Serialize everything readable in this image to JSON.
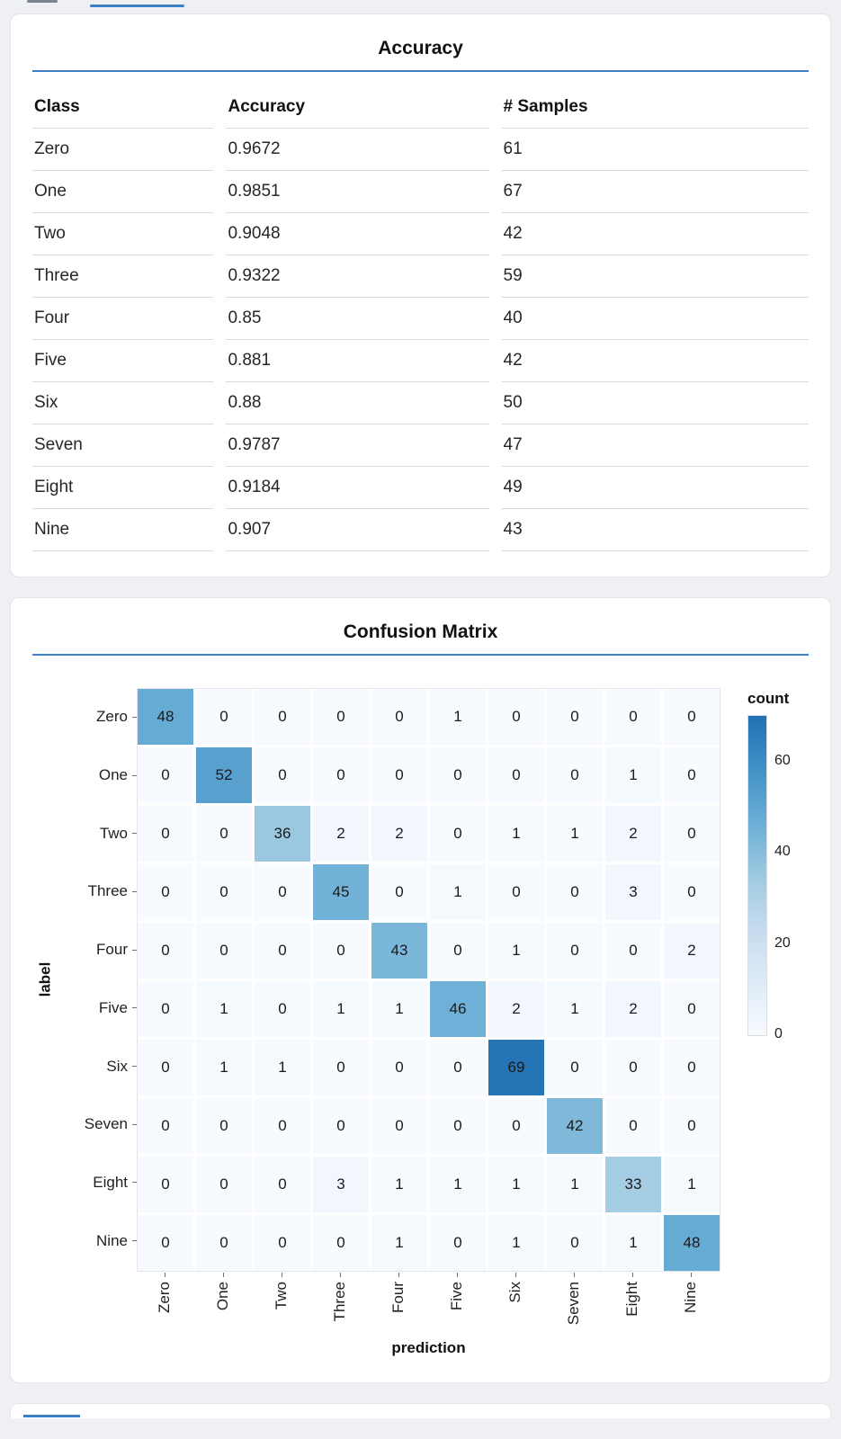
{
  "colors": {
    "accent": "#3d7fc4",
    "tab_inactive": "#7a8293",
    "heatmap_ramp": [
      "#f7fbff",
      "#deebf7",
      "#c6dbef",
      "#9ecae1",
      "#6baed6",
      "#4292c6",
      "#2171b5"
    ],
    "cell_text": "#1a1a1a"
  },
  "cards": [
    {
      "title": "Accuracy"
    },
    {
      "title": "Confusion Matrix"
    }
  ],
  "chart_data": [
    {
      "type": "table",
      "title": "Accuracy",
      "columns": [
        "Class",
        "Accuracy",
        "# Samples"
      ],
      "rows": [
        [
          "Zero",
          "0.9672",
          "61"
        ],
        [
          "One",
          "0.9851",
          "67"
        ],
        [
          "Two",
          "0.9048",
          "42"
        ],
        [
          "Three",
          "0.9322",
          "59"
        ],
        [
          "Four",
          "0.85",
          "40"
        ],
        [
          "Five",
          "0.881",
          "42"
        ],
        [
          "Six",
          "0.88",
          "50"
        ],
        [
          "Seven",
          "0.9787",
          "47"
        ],
        [
          "Eight",
          "0.9184",
          "49"
        ],
        [
          "Nine",
          "0.907",
          "43"
        ]
      ]
    },
    {
      "type": "heatmap",
      "title": "Confusion Matrix",
      "xlabel": "prediction",
      "ylabel": "label",
      "categories": [
        "Zero",
        "One",
        "Two",
        "Three",
        "Four",
        "Five",
        "Six",
        "Seven",
        "Eight",
        "Nine"
      ],
      "matrix": [
        [
          48,
          0,
          0,
          0,
          0,
          1,
          0,
          0,
          0,
          0
        ],
        [
          0,
          52,
          0,
          0,
          0,
          0,
          0,
          0,
          1,
          0
        ],
        [
          0,
          0,
          36,
          2,
          2,
          0,
          1,
          1,
          2,
          0
        ],
        [
          0,
          0,
          0,
          45,
          0,
          1,
          0,
          0,
          3,
          0
        ],
        [
          0,
          0,
          0,
          0,
          43,
          0,
          1,
          0,
          0,
          2
        ],
        [
          0,
          1,
          0,
          1,
          1,
          46,
          2,
          1,
          2,
          0
        ],
        [
          0,
          1,
          1,
          0,
          0,
          0,
          69,
          0,
          0,
          0
        ],
        [
          0,
          0,
          0,
          0,
          0,
          0,
          0,
          42,
          0,
          0
        ],
        [
          0,
          0,
          0,
          3,
          1,
          1,
          1,
          1,
          33,
          1
        ],
        [
          0,
          0,
          0,
          0,
          1,
          0,
          1,
          0,
          1,
          48
        ]
      ],
      "legend": {
        "title": "count",
        "ticks": [
          0,
          20,
          40,
          60
        ],
        "domain": [
          0,
          70
        ]
      }
    }
  ]
}
